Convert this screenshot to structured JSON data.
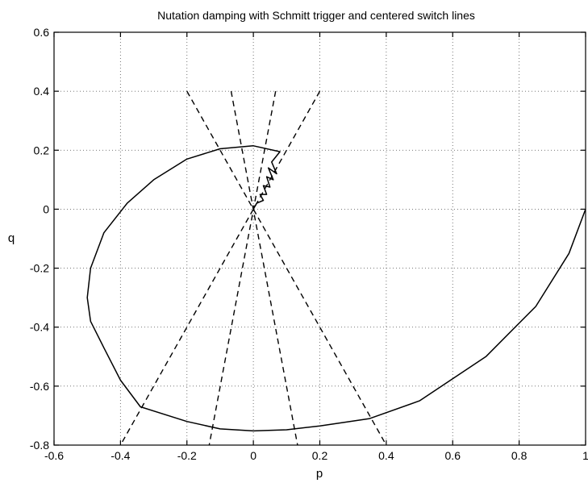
{
  "chart_data": {
    "type": "line",
    "title": "Nutation damping with Schmitt trigger and centered switch lines",
    "xlabel": "p",
    "ylabel": "q",
    "xlim": [
      -0.6,
      1
    ],
    "ylim": [
      -0.8,
      0.6
    ],
    "grid": true,
    "x_ticks": [
      "-0.6",
      "-0.4",
      "-0.2",
      "0",
      "0.2",
      "0.4",
      "0.6",
      "0.8",
      "1"
    ],
    "y_ticks": [
      "-0.8",
      "-0.6",
      "-0.4",
      "-0.2",
      "0",
      "0.2",
      "0.4",
      "0.6"
    ],
    "x_tick_values": [
      -0.6,
      -0.4,
      -0.2,
      0,
      0.2,
      0.4,
      0.6,
      0.8,
      1
    ],
    "y_tick_values": [
      -0.8,
      -0.6,
      -0.4,
      -0.2,
      0,
      0.2,
      0.4,
      0.6
    ],
    "series": [
      {
        "style": "solid",
        "x": [
          1.0,
          0.95,
          0.85,
          0.7,
          0.5,
          0.35,
          0.2,
          0.1,
          0.0,
          -0.1,
          -0.2,
          -0.34,
          -0.4,
          -0.45,
          -0.49,
          -0.5,
          -0.49,
          -0.45,
          -0.38,
          -0.3,
          -0.2,
          -0.1,
          0.0,
          0.08,
          0.055,
          0.07,
          0.045,
          0.06,
          0.04,
          0.05,
          0.03,
          0.04,
          0.02,
          0.03,
          0.01,
          0.0
        ],
        "y": [
          0.0,
          -0.15,
          -0.33,
          -0.5,
          -0.65,
          -0.71,
          -0.735,
          -0.748,
          -0.752,
          -0.745,
          -0.72,
          -0.67,
          -0.58,
          -0.47,
          -0.38,
          -0.3,
          -0.2,
          -0.08,
          0.02,
          0.1,
          0.17,
          0.205,
          0.215,
          0.195,
          0.16,
          0.12,
          0.14,
          0.1,
          0.11,
          0.075,
          0.08,
          0.05,
          0.05,
          0.03,
          0.02,
          0.0
        ]
      },
      {
        "style": "dashed",
        "segments": [
          [
            [
              -0.2,
              0.4
            ],
            [
              0.4,
              -0.8
            ]
          ],
          [
            [
              -0.067,
              0.4
            ],
            [
              0.133,
              -0.8
            ]
          ],
          [
            [
              0.067,
              0.4
            ],
            [
              -0.133,
              -0.8
            ]
          ],
          [
            [
              0.2,
              0.4
            ],
            [
              -0.4,
              -0.8
            ]
          ]
        ]
      }
    ]
  }
}
